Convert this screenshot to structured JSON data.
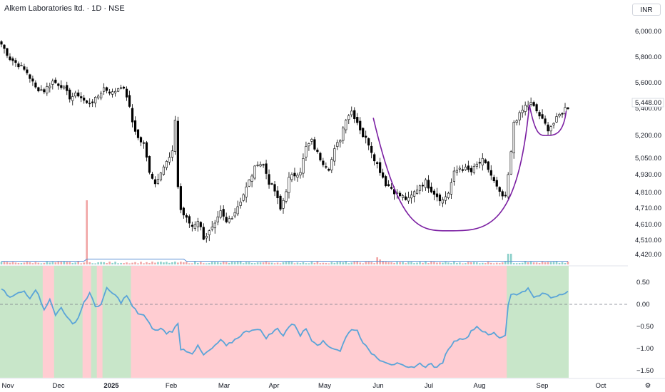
{
  "header": {
    "title": "Alkem Laboratories ltd. · 1D · NSE",
    "currency": "INR"
  },
  "colors": {
    "up": "#ffffff",
    "down": "#000000",
    "wick": "#000000",
    "cup": "#7b1fa2",
    "osc": "#5aa4d8",
    "pos_zone": "#c8e6c9",
    "neg_zone": "#ffcdd2",
    "vol_up": "#80cbc4",
    "vol_down": "#ef9a9a",
    "vol_ma": "#5b8fd6"
  },
  "chart_data": [
    {
      "type": "candlestick",
      "symbol": "Alkem Laboratories ltd.",
      "interval": "1D",
      "exchange": "NSE",
      "price_ticks": [
        6000,
        5800,
        5600,
        5448,
        5400,
        5200,
        5050,
        4930,
        4810,
        4710,
        4610,
        4510,
        4420
      ],
      "price_tick_labels": [
        "6,000.00",
        "5,800.00",
        "5,600.00",
        "5,448.00",
        "5,400.00",
        "5,200.00",
        "5,050.00",
        "4,930.00",
        "4,810.00",
        "4,710.00",
        "4,610.00",
        "4,510.00",
        "4,420.00"
      ],
      "current_price": 5448,
      "x_labels": [
        "Nov",
        "Dec",
        "2025",
        "Feb",
        "Mar",
        "Apr",
        "May",
        "Jun",
        "Jul",
        "Aug",
        "Sep",
        "Oct"
      ],
      "close_anchors": [
        [
          0,
          5900
        ],
        [
          3,
          5790
        ],
        [
          6,
          5740
        ],
        [
          9,
          5680
        ],
        [
          12,
          5560
        ],
        [
          15,
          5540
        ],
        [
          18,
          5610
        ],
        [
          21,
          5580
        ],
        [
          24,
          5490
        ],
        [
          27,
          5510
        ],
        [
          30,
          5440
        ],
        [
          33,
          5470
        ],
        [
          36,
          5560
        ],
        [
          39,
          5520
        ],
        [
          42,
          5580
        ],
        [
          44,
          5500
        ],
        [
          46,
          5300
        ],
        [
          48,
          5180
        ],
        [
          50,
          5140
        ],
        [
          52,
          4960
        ],
        [
          54,
          4870
        ],
        [
          56,
          4960
        ],
        [
          58,
          5020
        ],
        [
          60,
          5080
        ],
        [
          61,
          5320
        ],
        [
          62,
          4850
        ],
        [
          63,
          4700
        ],
        [
          65,
          4640
        ],
        [
          67,
          4600
        ],
        [
          69,
          4640
        ],
        [
          71,
          4530
        ],
        [
          73,
          4560
        ],
        [
          75,
          4600
        ],
        [
          77,
          4680
        ],
        [
          79,
          4620
        ],
        [
          82,
          4690
        ],
        [
          84,
          4760
        ],
        [
          86,
          4840
        ],
        [
          88,
          4930
        ],
        [
          90,
          5020
        ],
        [
          92,
          5000
        ],
        [
          94,
          4880
        ],
        [
          96,
          4820
        ],
        [
          98,
          4700
        ],
        [
          99,
          4760
        ],
        [
          101,
          4900
        ],
        [
          103,
          4930
        ],
        [
          105,
          4960
        ],
        [
          107,
          5120
        ],
        [
          109,
          5160
        ],
        [
          111,
          5080
        ],
        [
          113,
          5020
        ],
        [
          115,
          4980
        ],
        [
          117,
          5100
        ],
        [
          119,
          5180
        ],
        [
          121,
          5330
        ],
        [
          123,
          5380
        ],
        [
          125,
          5300
        ],
        [
          127,
          5200
        ],
        [
          129,
          5150
        ],
        [
          131,
          5050
        ],
        [
          133,
          4960
        ],
        [
          135,
          4870
        ],
        [
          137,
          4840
        ],
        [
          139,
          4800
        ],
        [
          141,
          4780
        ],
        [
          143,
          4760
        ],
        [
          145,
          4810
        ],
        [
          147,
          4860
        ],
        [
          149,
          4880
        ],
        [
          151,
          4830
        ],
        [
          153,
          4790
        ],
        [
          155,
          4760
        ],
        [
          157,
          4810
        ],
        [
          159,
          4940
        ],
        [
          161,
          4980
        ],
        [
          163,
          4970
        ],
        [
          165,
          4950
        ],
        [
          167,
          5000
        ],
        [
          169,
          5030
        ],
        [
          171,
          4970
        ],
        [
          173,
          4880
        ],
        [
          175,
          4800
        ],
        [
          177,
          4770
        ],
        [
          179,
          5080
        ],
        [
          180,
          5300
        ],
        [
          182,
          5350
        ],
        [
          184,
          5420
        ],
        [
          186,
          5440
        ],
        [
          188,
          5380
        ],
        [
          190,
          5310
        ],
        [
          192,
          5250
        ],
        [
          194,
          5290
        ],
        [
          196,
          5350
        ],
        [
          198,
          5400
        ],
        [
          199,
          5410
        ]
      ],
      "cup_pattern": {
        "left_rim": [
          "2025-05-28",
          5330
        ],
        "bottom": [
          "2025-07-12",
          4570
        ],
        "right_rim": [
          "2025-08-25",
          5430
        ]
      },
      "handle_pattern": {
        "start": [
          "2025-08-25",
          5430
        ],
        "bottom": [
          "2025-09-05",
          5200
        ],
        "end": [
          "2025-09-15",
          5380
        ]
      }
    },
    {
      "type": "volume",
      "moving_average": true
    },
    {
      "type": "line",
      "y_ticks": [
        0.5,
        0,
        -0.5,
        -1,
        -1.5
      ],
      "y_tick_labels": [
        "0.50",
        "0.00",
        "−0.50",
        "−1.00",
        "−1.50"
      ],
      "baseline": 0,
      "series_anchors": [
        [
          0,
          0.35
        ],
        [
          3,
          0.15
        ],
        [
          6,
          0.25
        ],
        [
          8,
          0.3
        ],
        [
          10,
          0.15
        ],
        [
          12,
          0.35
        ],
        [
          15,
          -0.1
        ],
        [
          17,
          0.1
        ],
        [
          19,
          -0.25
        ],
        [
          21,
          -0.05
        ],
        [
          23,
          -0.3
        ],
        [
          25,
          -0.45
        ],
        [
          27,
          -0.3
        ],
        [
          29,
          0.05
        ],
        [
          31,
          0.25
        ],
        [
          33,
          -0.05
        ],
        [
          35,
          0.0
        ],
        [
          37,
          0.35
        ],
        [
          40,
          0.2
        ],
        [
          42,
          0.05
        ],
        [
          44,
          0.2
        ],
        [
          46,
          -0.05
        ],
        [
          48,
          -0.2
        ],
        [
          50,
          -0.25
        ],
        [
          52,
          -0.45
        ],
        [
          54,
          -0.6
        ],
        [
          56,
          -0.55
        ],
        [
          58,
          -0.65
        ],
        [
          60,
          -0.6
        ],
        [
          62,
          -0.45
        ],
        [
          63,
          -1.0
        ],
        [
          65,
          -1.05
        ],
        [
          67,
          -1.1
        ],
        [
          69,
          -0.95
        ],
        [
          71,
          -1.15
        ],
        [
          73,
          -1.05
        ],
        [
          75,
          -0.95
        ],
        [
          77,
          -0.8
        ],
        [
          79,
          -0.95
        ],
        [
          81,
          -0.85
        ],
        [
          83,
          -0.75
        ],
        [
          85,
          -0.65
        ],
        [
          87,
          -0.6
        ],
        [
          89,
          -0.55
        ],
        [
          91,
          -0.6
        ],
        [
          93,
          -0.75
        ],
        [
          95,
          -0.65
        ],
        [
          97,
          -0.55
        ],
        [
          99,
          -0.7
        ],
        [
          101,
          -0.5
        ],
        [
          103,
          -0.45
        ],
        [
          105,
          -0.7
        ],
        [
          107,
          -0.55
        ],
        [
          109,
          -0.8
        ],
        [
          111,
          -0.9
        ],
        [
          113,
          -0.85
        ],
        [
          115,
          -0.95
        ],
        [
          117,
          -1.0
        ],
        [
          119,
          -1.05
        ],
        [
          121,
          -0.75
        ],
        [
          123,
          -0.55
        ],
        [
          125,
          -0.6
        ],
        [
          127,
          -0.85
        ],
        [
          129,
          -1.05
        ],
        [
          131,
          -1.15
        ],
        [
          133,
          -1.25
        ],
        [
          135,
          -1.3
        ],
        [
          137,
          -1.35
        ],
        [
          139,
          -1.35
        ],
        [
          141,
          -1.4
        ],
        [
          143,
          -1.45
        ],
        [
          145,
          -1.4
        ],
        [
          147,
          -1.35
        ],
        [
          149,
          -1.4
        ],
        [
          151,
          -1.35
        ],
        [
          153,
          -1.45
        ],
        [
          155,
          -1.3
        ],
        [
          157,
          -1.0
        ],
        [
          159,
          -0.85
        ],
        [
          161,
          -0.75
        ],
        [
          163,
          -0.8
        ],
        [
          165,
          -0.6
        ],
        [
          167,
          -0.5
        ],
        [
          169,
          -0.6
        ],
        [
          171,
          -0.7
        ],
        [
          173,
          -0.65
        ],
        [
          175,
          -0.75
        ],
        [
          177,
          -0.7
        ],
        [
          178,
          0.0
        ],
        [
          179,
          0.25
        ],
        [
          181,
          0.2
        ],
        [
          183,
          0.3
        ],
        [
          185,
          0.35
        ],
        [
          187,
          0.15
        ],
        [
          189,
          0.2
        ],
        [
          191,
          0.25
        ],
        [
          193,
          0.15
        ],
        [
          195,
          0.2
        ],
        [
          197,
          0.25
        ],
        [
          199,
          0.3
        ]
      ],
      "zones": [
        {
          "from": 0,
          "to": 15,
          "sign": "positive"
        },
        {
          "from": 15,
          "to": 19,
          "sign": "negative"
        },
        {
          "from": 19,
          "to": 29,
          "sign": "positive"
        },
        {
          "from": 29,
          "to": 32,
          "sign": "negative"
        },
        {
          "from": 32,
          "to": 34,
          "sign": "positive"
        },
        {
          "from": 34,
          "to": 36,
          "sign": "negative"
        },
        {
          "from": 36,
          "to": 46,
          "sign": "positive"
        },
        {
          "from": 46,
          "to": 178,
          "sign": "negative"
        },
        {
          "from": 178,
          "to": 199,
          "sign": "positive"
        }
      ]
    }
  ]
}
